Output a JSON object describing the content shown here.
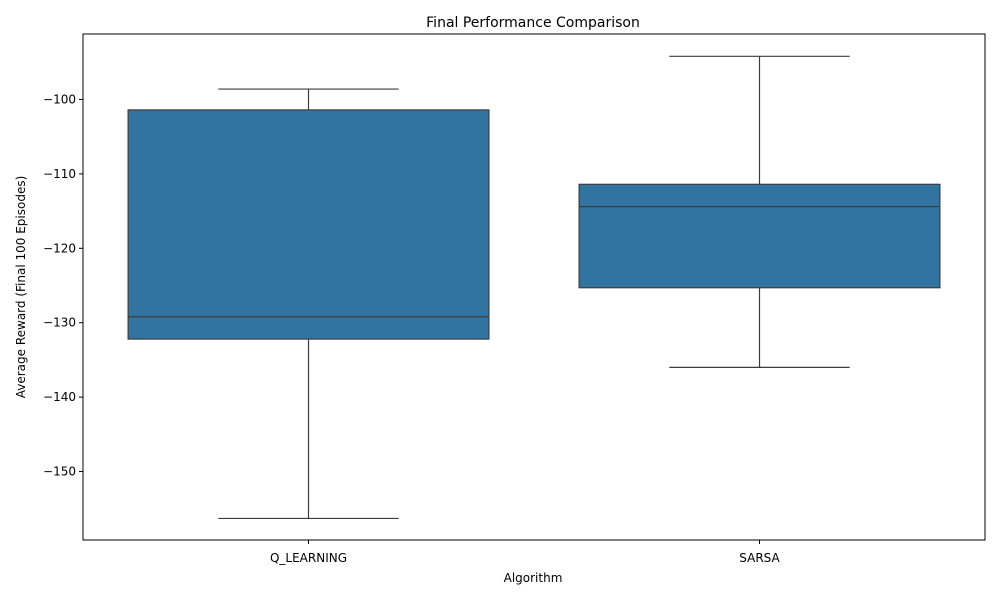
{
  "chart_data": {
    "type": "box",
    "title": "Final Performance Comparison",
    "xlabel": "Algorithm",
    "ylabel": "Average Reward (Final 100 Episodes)",
    "categories": [
      "Q_LEARNING",
      "SARSA"
    ],
    "boxes": [
      {
        "category": "Q_LEARNING",
        "whisker_low": -156.3,
        "q1": -132.2,
        "median": -129.2,
        "q3": -101.4,
        "whisker_high": -98.6
      },
      {
        "category": "SARSA",
        "whisker_low": -136.0,
        "q1": -125.3,
        "median": -114.4,
        "q3": -111.4,
        "whisker_high": -94.2
      }
    ],
    "yticks": [
      -100,
      -110,
      -120,
      -130,
      -140,
      -150
    ],
    "ytick_labels": [
      "−100",
      "−110",
      "−120",
      "−130",
      "−140",
      "−150"
    ],
    "ylim": [
      -159.2,
      -91.2
    ],
    "grid": false,
    "box_color": "#3274a1",
    "line_color": "#3d3d3d"
  }
}
